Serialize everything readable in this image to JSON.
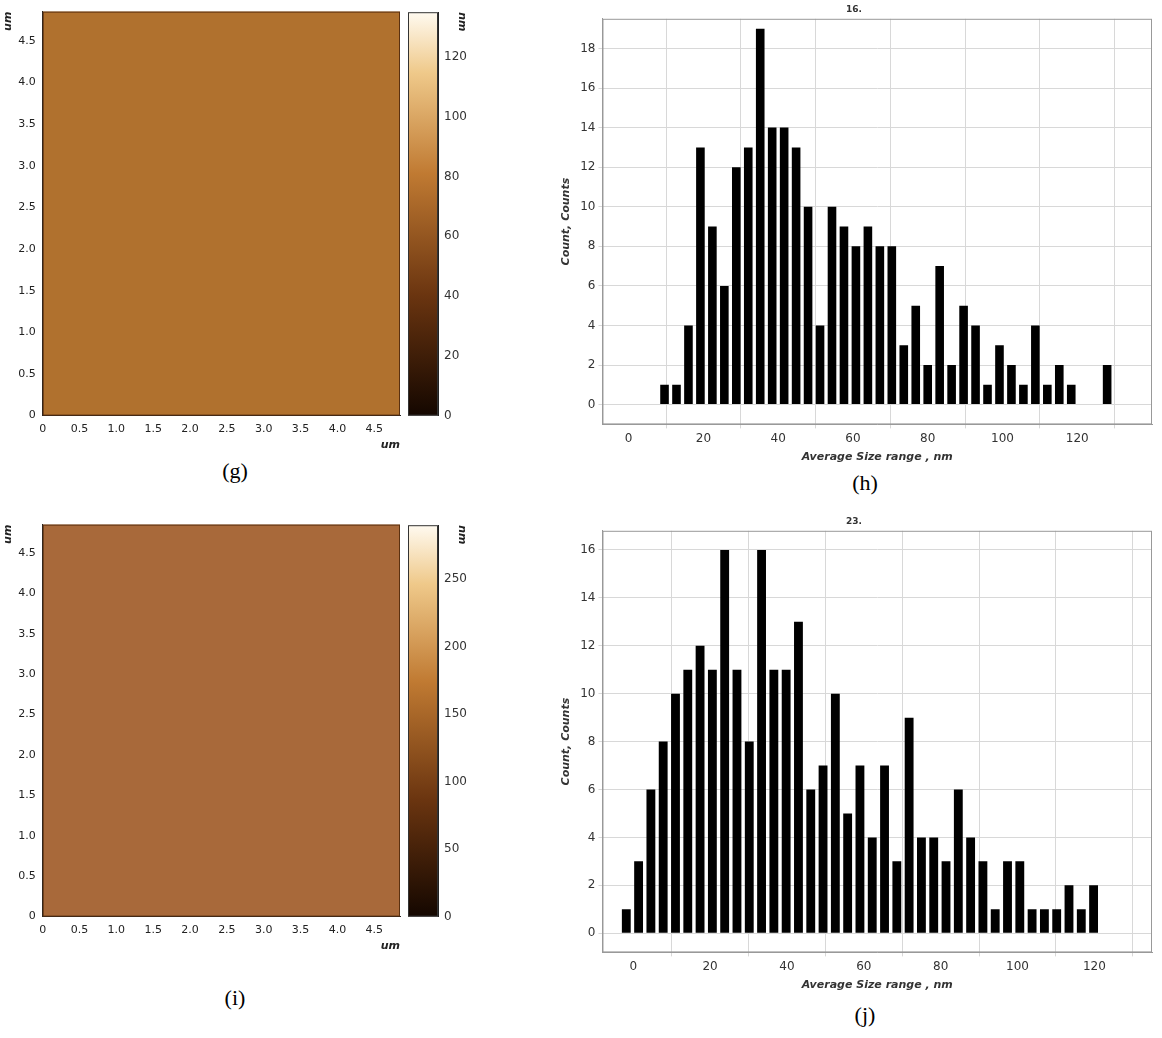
{
  "chart_data": [
    {
      "type": "image",
      "panel_label": "(g)",
      "color": "#b0712e",
      "xlabel": "um",
      "ylabel": "um",
      "xlim": [
        0,
        4.85
      ],
      "ylim": [
        0,
        4.85
      ],
      "xticks": [
        0,
        0.5,
        {
          "value": 1,
          "label": "1.0"
        },
        1.5,
        {
          "value": 2,
          "label": "2.0"
        },
        2.5,
        {
          "value": 3,
          "label": "3.0"
        },
        3.5,
        {
          "value": 4,
          "label": "4.0"
        },
        4.5
      ],
      "yticks": [
        0,
        0.5,
        {
          "value": 1,
          "label": "1.0"
        },
        1.5,
        {
          "value": 2,
          "label": "2.0"
        },
        2.5,
        {
          "value": 3,
          "label": "3.0"
        },
        3.5,
        {
          "value": 4,
          "label": "4.0"
        },
        4.5
      ],
      "colorbar": {
        "label": "nm",
        "range": [
          0,
          135
        ],
        "ticks": [
          0,
          20,
          40,
          60,
          80,
          100,
          120
        ]
      }
    },
    {
      "type": "histogram",
      "panel_label": "(h)",
      "title": "16.",
      "xlabel": "Average Size range , nm",
      "ylabel": "Count, Counts",
      "bins": [
        8,
        11.2,
        14.4,
        17.6,
        20.8,
        24,
        27.2,
        30.4,
        33.6,
        36.8,
        40,
        43.2,
        46.4,
        49.6,
        52.8,
        56,
        59.2,
        62.4,
        65.6,
        68.8,
        72,
        75.2,
        78.4,
        81.6,
        84.8,
        88,
        91.2,
        94.4,
        97.6,
        100.8,
        104,
        107.2,
        110.4,
        113.6,
        116.8,
        120,
        123.2,
        126.4,
        129.6
      ],
      "counts": [
        1,
        1,
        4,
        13,
        9,
        6,
        12,
        13,
        19,
        14,
        14,
        13,
        10,
        4,
        10,
        9,
        8,
        9,
        8,
        8,
        3,
        5,
        2,
        7,
        2,
        5,
        4,
        1,
        3,
        2,
        1,
        4,
        1,
        2,
        1,
        0,
        0,
        2
      ],
      "color": "#000000",
      "xlim": [
        -7,
        140
      ],
      "ylim": [
        -1,
        19.5
      ],
      "xticks": [
        0,
        20,
        40,
        60,
        80,
        100,
        120
      ],
      "yticks": [
        0,
        2,
        4,
        6,
        8,
        10,
        12,
        14,
        16,
        18
      ],
      "grid": true
    },
    {
      "type": "image",
      "panel_label": "(i)",
      "color": "#a8693a",
      "xlabel": "um",
      "ylabel": "um",
      "xlim": [
        0,
        4.85
      ],
      "ylim": [
        0,
        4.85
      ],
      "xticks": [
        0,
        0.5,
        {
          "value": 1,
          "label": "1.0"
        },
        1.5,
        {
          "value": 2,
          "label": "2.0"
        },
        2.5,
        {
          "value": 3,
          "label": "3.0"
        },
        3.5,
        {
          "value": 4,
          "label": "4.0"
        },
        4.5
      ],
      "yticks": [
        0,
        0.5,
        {
          "value": 1,
          "label": "1.0"
        },
        1.5,
        {
          "value": 2,
          "label": "2.0"
        },
        2.5,
        {
          "value": 3,
          "label": "3.0"
        },
        3.5,
        {
          "value": 4,
          "label": "4.0"
        },
        4.5
      ],
      "colorbar": {
        "label": "nm",
        "range": [
          0,
          290
        ],
        "ticks": [
          0,
          50,
          100,
          150,
          200,
          250
        ]
      }
    },
    {
      "type": "histogram",
      "panel_label": "(j)",
      "title": "23.",
      "xlabel": "Average Size range , nm",
      "ylabel": "Count, Counts",
      "bins": [
        -3.4,
        -0.2,
        3,
        6.2,
        9.4,
        12.6,
        15.8,
        19,
        22.2,
        25.4,
        28.6,
        31.8,
        35,
        38.2,
        41.4,
        44.6,
        47.8,
        51,
        54.2,
        57.4,
        60.6,
        63.8,
        67,
        70.2,
        73.4,
        76.6,
        79.8,
        83,
        86.2,
        89.4,
        92.6,
        95.8,
        99,
        102.2,
        105.4,
        108.6,
        111.8,
        115,
        118.2,
        121.4
      ],
      "counts": [
        1,
        3,
        6,
        8,
        10,
        11,
        12,
        11,
        16,
        11,
        8,
        16,
        11,
        11,
        13,
        6,
        7,
        10,
        5,
        7,
        4,
        7,
        3,
        9,
        4,
        4,
        3,
        6,
        4,
        3,
        1,
        3,
        3,
        1,
        1,
        1,
        2,
        1,
        2
      ],
      "color": "#000000",
      "xlim": [
        -8,
        135
      ],
      "ylim": [
        -0.8,
        16.8
      ],
      "xticks": [
        0,
        20,
        40,
        60,
        80,
        100,
        120
      ],
      "yticks": [
        0,
        2,
        4,
        6,
        8,
        10,
        12,
        14,
        16
      ],
      "grid": true
    }
  ]
}
